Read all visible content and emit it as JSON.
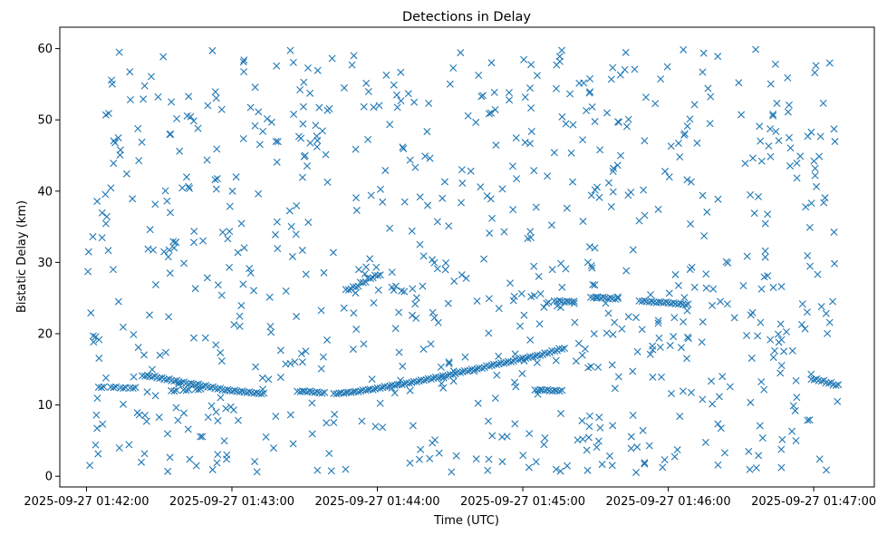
{
  "chart_data": {
    "type": "scatter",
    "title": "Detections in Delay",
    "xlabel": "Time (UTC)",
    "ylabel": "Bistatic Delay (km)",
    "marker": "x",
    "color": "#1f77b4",
    "grid": false,
    "xlim": [
      "2025-09-27 01:41:49",
      "2025-09-27 01:47:25"
    ],
    "ylim": [
      -1.5,
      63
    ],
    "xticks": [
      "2025-09-27 01:42:00",
      "2025-09-27 01:43:00",
      "2025-09-27 01:44:00",
      "2025-09-27 01:45:00",
      "2025-09-27 01:46:00",
      "2025-09-27 01:47:00"
    ],
    "yticks": [
      0,
      10,
      20,
      30,
      40,
      50,
      60
    ],
    "ytick_labels": [
      "0",
      "10",
      "20",
      "30",
      "40",
      "50",
      "60"
    ],
    "track_points": [
      [
        "2025-09-27 01:42:05",
        12.5
      ],
      [
        "2025-09-27 01:42:10",
        12.5
      ],
      [
        "2025-09-27 01:42:14",
        12.4
      ],
      [
        "2025-09-27 01:42:18",
        12.4
      ],
      [
        "2025-09-27 01:42:23",
        14.1
      ],
      [
        "2025-09-27 01:42:26",
        14.0
      ],
      [
        "2025-09-27 01:42:29",
        13.8
      ],
      [
        "2025-09-27 01:42:32",
        13.6
      ],
      [
        "2025-09-27 01:42:35",
        13.4
      ],
      [
        "2025-09-27 01:42:38",
        13.2
      ],
      [
        "2025-09-27 01:42:41",
        13.0
      ],
      [
        "2025-09-27 01:42:44",
        12.9
      ],
      [
        "2025-09-27 01:42:47",
        12.7
      ],
      [
        "2025-09-27 01:42:50",
        12.5
      ],
      [
        "2025-09-27 01:42:53",
        12.3
      ],
      [
        "2025-09-27 01:42:56",
        12.1
      ],
      [
        "2025-09-27 01:42:59",
        12.0
      ],
      [
        "2025-09-27 01:43:02",
        11.9
      ],
      [
        "2025-09-27 01:43:05",
        11.8
      ],
      [
        "2025-09-27 01:43:08",
        11.7
      ],
      [
        "2025-09-27 01:43:11",
        11.6
      ],
      [
        "2025-09-27 01:42:35",
        12.0
      ],
      [
        "2025-09-27 01:42:40",
        12.1
      ],
      [
        "2025-09-27 01:42:45",
        12.2
      ],
      [
        "2025-09-27 01:43:27",
        11.9
      ],
      [
        "2025-09-27 01:43:30",
        11.9
      ],
      [
        "2025-09-27 01:43:33",
        11.8
      ],
      [
        "2025-09-27 01:43:36",
        11.7
      ],
      [
        "2025-09-27 01:43:42",
        11.6
      ],
      [
        "2025-09-27 01:43:45",
        11.7
      ],
      [
        "2025-09-27 01:43:48",
        11.8
      ],
      [
        "2025-09-27 01:43:51",
        11.9
      ],
      [
        "2025-09-27 01:43:54",
        12.1
      ],
      [
        "2025-09-27 01:43:57",
        12.2
      ],
      [
        "2025-09-27 01:44:00",
        12.4
      ],
      [
        "2025-09-27 01:44:03",
        12.6
      ],
      [
        "2025-09-27 01:44:06",
        12.8
      ],
      [
        "2025-09-27 01:44:09",
        12.9
      ],
      [
        "2025-09-27 01:44:12",
        13.1
      ],
      [
        "2025-09-27 01:44:15",
        13.3
      ],
      [
        "2025-09-27 01:44:18",
        13.5
      ],
      [
        "2025-09-27 01:44:21",
        13.7
      ],
      [
        "2025-09-27 01:44:24",
        13.9
      ],
      [
        "2025-09-27 01:44:27",
        14.1
      ],
      [
        "2025-09-27 01:44:30",
        14.3
      ],
      [
        "2025-09-27 01:44:33",
        14.6
      ],
      [
        "2025-09-27 01:44:36",
        14.8
      ],
      [
        "2025-09-27 01:44:39",
        15.0
      ],
      [
        "2025-09-27 01:44:42",
        15.2
      ],
      [
        "2025-09-27 01:44:45",
        15.5
      ],
      [
        "2025-09-27 01:44:48",
        15.7
      ],
      [
        "2025-09-27 01:44:51",
        15.9
      ],
      [
        "2025-09-27 01:44:54",
        16.1
      ],
      [
        "2025-09-27 01:44:57",
        16.4
      ],
      [
        "2025-09-27 01:45:00",
        16.6
      ],
      [
        "2025-09-27 01:45:03",
        16.8
      ],
      [
        "2025-09-27 01:45:06",
        17.0
      ],
      [
        "2025-09-27 01:45:09",
        17.3
      ],
      [
        "2025-09-27 01:45:12",
        17.6
      ],
      [
        "2025-09-27 01:45:15",
        17.9
      ],
      [
        "2025-09-27 01:45:05",
        12.1
      ],
      [
        "2025-09-27 01:45:08",
        12.1
      ],
      [
        "2025-09-27 01:45:11",
        12.0
      ],
      [
        "2025-09-27 01:45:14",
        12.0
      ],
      [
        "2025-09-27 01:45:13",
        24.6
      ],
      [
        "2025-09-27 01:45:16",
        24.5
      ],
      [
        "2025-09-27 01:45:19",
        24.5
      ],
      [
        "2025-09-27 01:45:28",
        25.1
      ],
      [
        "2025-09-27 01:45:31",
        25.1
      ],
      [
        "2025-09-27 01:45:34",
        25.0
      ],
      [
        "2025-09-27 01:45:37",
        24.9
      ],
      [
        "2025-09-27 01:45:48",
        24.6
      ],
      [
        "2025-09-27 01:45:51",
        24.5
      ],
      [
        "2025-09-27 01:45:54",
        24.4
      ],
      [
        "2025-09-27 01:45:57",
        24.4
      ],
      [
        "2025-09-27 01:46:00",
        24.3
      ],
      [
        "2025-09-27 01:46:03",
        24.2
      ],
      [
        "2025-09-27 01:46:06",
        24.1
      ],
      [
        "2025-09-27 01:43:47",
        26.2
      ],
      [
        "2025-09-27 01:43:50",
        26.6
      ],
      [
        "2025-09-27 01:43:53",
        27.2
      ],
      [
        "2025-09-27 01:43:56",
        27.8
      ],
      [
        "2025-09-27 01:43:59",
        28.2
      ],
      [
        "2025-09-27 01:46:59",
        13.6
      ],
      [
        "2025-09-27 01:47:02",
        13.4
      ],
      [
        "2025-09-27 01:47:05",
        13.1
      ],
      [
        "2025-09-27 01:47:08",
        12.8
      ]
    ],
    "noise_points_note": "Approximately 800 additional scattered detections uniformly distributed over 01:42:00–01:47:10 and 0–60 km."
  }
}
